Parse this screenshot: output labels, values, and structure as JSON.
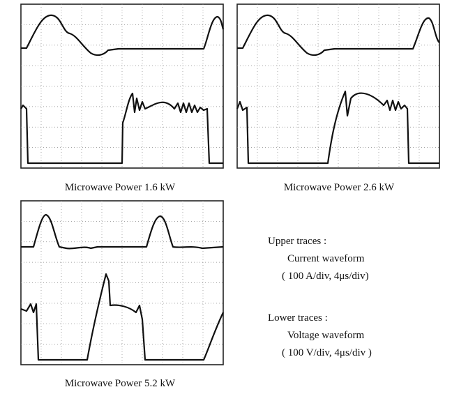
{
  "panels": [
    {
      "caption": "Microwave Power 1.6 kW"
    },
    {
      "caption": "Microwave Power 2.6 kW"
    },
    {
      "caption": "Microwave Power 5.2 kW"
    }
  ],
  "legend": {
    "upper_heading": "Upper traces :",
    "upper_desc": "Current waveform",
    "upper_scale": "( 100 A/div, 4μs/div)",
    "lower_heading": "Lower traces :",
    "lower_desc": "Voltage waveform",
    "lower_scale": "( 100 V/div, 4μs/div )"
  }
}
